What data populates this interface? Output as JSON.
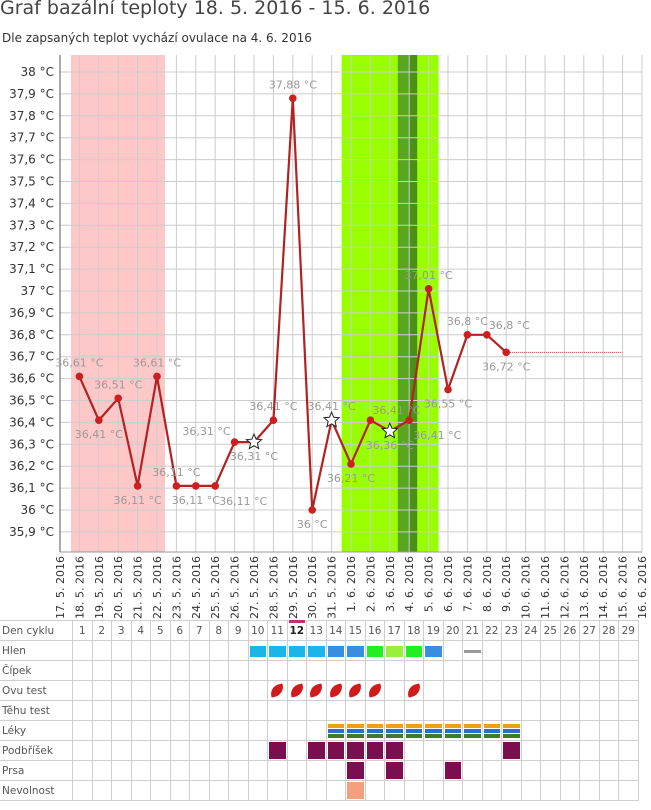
{
  "header": {
    "title": "Graf bazální teploty 18. 5. 2016 - 15. 6. 2016",
    "subtitle": "Dle zapsaných teplot vychází ovulace na 4. 6. 2016"
  },
  "colors": {
    "line": "#b22222",
    "point": "#cc1f1f",
    "period_band": "#ffc8c8",
    "fertile_band": "#99ff00",
    "ovulation_band": "#5aa61e",
    "forecast": "#cc2222",
    "label": "#999999"
  },
  "chart_data": {
    "type": "line",
    "y_ticks": [
      "38 °C",
      "37,9 °C",
      "37,8 °C",
      "37,7 °C",
      "37,6 °C",
      "37,5 °C",
      "37,4 °C",
      "37,3 °C",
      "37,2 °C",
      "37,1 °C",
      "37 °C",
      "36,9 °C",
      "36,8 °C",
      "36,7 °C",
      "36,6 °C",
      "36,5 °C",
      "36,4 °C",
      "36,3 °C",
      "36,2 °C",
      "36,1 °C",
      "36 °C",
      "35,9 °C"
    ],
    "ylim": [
      35.8,
      38.05
    ],
    "x_ticks": [
      "17. 5. 2016",
      "18. 5. 2016",
      "19. 5. 2016",
      "20. 5. 2016",
      "21. 5. 2016",
      "22. 5. 2016",
      "23. 5. 2016",
      "24. 5. 2016",
      "25. 5. 2016",
      "26. 5. 2016",
      "27. 5. 2016",
      "28. 5. 2016",
      "29. 5. 2016",
      "30. 5. 2016",
      "31. 5. 2016",
      "1. 6. 2016",
      "2. 6. 2016",
      "3. 6. 2016",
      "4. 6. 2016",
      "5. 6. 2016",
      "6. 6. 2016",
      "7. 6. 2016",
      "8. 6. 2016",
      "9. 6. 2016",
      "10. 6. 2016",
      "11. 6. 2016",
      "12. 6. 2016",
      "13. 6. 2016",
      "14. 6. 2016",
      "15. 6. 2016",
      "16. 6. 2016"
    ],
    "x_first_date": "17. 5. 2016",
    "period_band": [
      "17. 5. 2016",
      "22. 5. 2016"
    ],
    "fertile_band": [
      "31. 5. 2016",
      "5. 6. 2016"
    ],
    "ovulation_band": [
      "3. 6. 2016",
      "4. 6. 2016"
    ],
    "forecast": {
      "from": "9. 6. 2016",
      "to": "15. 6. 2016",
      "value": 36.72
    },
    "points": [
      {
        "date": "18. 5. 2016",
        "value": 36.61,
        "label": "36,61 °C",
        "label_pos": "above",
        "marker": "dot"
      },
      {
        "date": "19. 5. 2016",
        "value": 36.41,
        "label": "36,41 °C",
        "label_pos": "below",
        "marker": "dot"
      },
      {
        "date": "20. 5. 2016",
        "value": 36.51,
        "label": "36,51 °C",
        "label_pos": "above",
        "marker": "dot"
      },
      {
        "date": "21. 5. 2016",
        "value": 36.11,
        "label": "36,11 °C",
        "label_pos": "below",
        "marker": "dot"
      },
      {
        "date": "22. 5. 2016",
        "value": 36.61,
        "label": "36,61 °C",
        "label_pos": "above",
        "marker": "dot"
      },
      {
        "date": "23. 5. 2016",
        "value": 36.11,
        "label": "36,11 °C",
        "label_pos": "above",
        "marker": "dot"
      },
      {
        "date": "24. 5. 2016",
        "value": 36.11,
        "label": "36,11 °C",
        "label_pos": "below",
        "marker": "dot"
      },
      {
        "date": "25. 5. 2016",
        "value": 36.11,
        "label": "36,11 °C",
        "label_pos": "below-right",
        "marker": "dot"
      },
      {
        "date": "26. 5. 2016",
        "value": 36.31,
        "label": "36,31 °C",
        "label_pos": "above-left",
        "marker": "dot"
      },
      {
        "date": "27. 5. 2016",
        "value": 36.31,
        "label": "36,31 °C",
        "label_pos": "below",
        "marker": "star"
      },
      {
        "date": "28. 5. 2016",
        "value": 36.41,
        "label": "36,41 °C",
        "label_pos": "above",
        "marker": "dot"
      },
      {
        "date": "29. 5. 2016",
        "value": 37.88,
        "label": "37,88 °C",
        "label_pos": "above",
        "marker": "dot"
      },
      {
        "date": "30. 5. 2016",
        "value": 36.0,
        "label": "36 °C",
        "label_pos": "below",
        "marker": "dot"
      },
      {
        "date": "31. 5. 2016",
        "value": 36.41,
        "label": "36,41 °C",
        "label_pos": "above",
        "marker": "star"
      },
      {
        "date": "1. 6. 2016",
        "value": 36.21,
        "label": "36,21 °C",
        "label_pos": "below",
        "marker": "dot"
      },
      {
        "date": "2. 6. 2016",
        "value": 36.41,
        "label": "36,41 °C",
        "label_pos": "above-right",
        "marker": "dot"
      },
      {
        "date": "3. 6. 2016",
        "value": 36.36,
        "label": "36,36 °C",
        "label_pos": "below",
        "marker": "star"
      },
      {
        "date": "4. 6. 2016",
        "value": 36.41,
        "label": "36,41 °C",
        "label_pos": "below-right",
        "marker": "dot"
      },
      {
        "date": "5. 6. 2016",
        "value": 37.01,
        "label": "37,01 °C",
        "label_pos": "above",
        "marker": "dot"
      },
      {
        "date": "6. 6. 2016",
        "value": 36.55,
        "label": "36,55 °C",
        "label_pos": "below",
        "marker": "dot"
      },
      {
        "date": "7. 6. 2016",
        "value": 36.8,
        "label": "36,8 °C",
        "label_pos": "above",
        "marker": "dot"
      },
      {
        "date": "8. 6. 2016",
        "value": 36.8,
        "label": "36,8 °C",
        "label_pos": "above-right",
        "marker": "dot"
      },
      {
        "date": "9. 6. 2016",
        "value": 36.72,
        "label": "36,72 °C",
        "label_pos": "below",
        "marker": "dot"
      }
    ]
  },
  "cycle_table": {
    "label_header": "Den cyklu",
    "days": [
      "1",
      "2",
      "3",
      "4",
      "5",
      "6",
      "7",
      "8",
      "9",
      "10",
      "11",
      "12",
      "13",
      "14",
      "15",
      "16",
      "17",
      "18",
      "19",
      "20",
      "21",
      "22",
      "23",
      "24",
      "25",
      "26",
      "27",
      "28",
      "29"
    ],
    "today_day": 12,
    "rows": [
      {
        "label": "Hlen",
        "marks": [
          {
            "day": 10,
            "kind": "block",
            "color": "#1ab6e8"
          },
          {
            "day": 11,
            "kind": "block",
            "color": "#1ab6e8"
          },
          {
            "day": 12,
            "kind": "block",
            "color": "#1ab6e8"
          },
          {
            "day": 13,
            "kind": "block",
            "color": "#1ab6e8"
          },
          {
            "day": 14,
            "kind": "block",
            "color": "#3a8ee0"
          },
          {
            "day": 15,
            "kind": "block",
            "color": "#3a8ee0"
          },
          {
            "day": 16,
            "kind": "block",
            "color": "#22ee22"
          },
          {
            "day": 17,
            "kind": "block",
            "color": "#99f03c"
          },
          {
            "day": 18,
            "kind": "block",
            "color": "#22ee22"
          },
          {
            "day": 19,
            "kind": "block",
            "color": "#3a8ee0"
          },
          {
            "day": 21,
            "kind": "bar",
            "color": "#9a9a9a"
          }
        ]
      },
      {
        "label": "Čípek",
        "marks": []
      },
      {
        "label": "Ovu test",
        "marks": [
          {
            "day": 11,
            "kind": "leaf"
          },
          {
            "day": 12,
            "kind": "leaf"
          },
          {
            "day": 13,
            "kind": "leaf"
          },
          {
            "day": 14,
            "kind": "leaf"
          },
          {
            "day": 15,
            "kind": "leaf"
          },
          {
            "day": 16,
            "kind": "leaf"
          },
          {
            "day": 18,
            "kind": "leaf"
          }
        ]
      },
      {
        "label": "Těhu test",
        "marks": []
      },
      {
        "label": "Léky",
        "marks": [
          {
            "day": 14,
            "kind": "pill"
          },
          {
            "day": 15,
            "kind": "pill"
          },
          {
            "day": 16,
            "kind": "pill"
          },
          {
            "day": 17,
            "kind": "pill"
          },
          {
            "day": 18,
            "kind": "pill"
          },
          {
            "day": 19,
            "kind": "pill"
          },
          {
            "day": 20,
            "kind": "pill"
          },
          {
            "day": 21,
            "kind": "pill"
          },
          {
            "day": 22,
            "kind": "pill"
          },
          {
            "day": 23,
            "kind": "pill"
          }
        ]
      },
      {
        "label": "Podbříšek",
        "marks": [
          {
            "day": 11,
            "kind": "square",
            "color": "#7a0e4e"
          },
          {
            "day": 13,
            "kind": "square",
            "color": "#7a0e4e"
          },
          {
            "day": 14,
            "kind": "square",
            "color": "#7a0e4e"
          },
          {
            "day": 15,
            "kind": "square",
            "color": "#7a0e4e"
          },
          {
            "day": 16,
            "kind": "square",
            "color": "#7a0e4e"
          },
          {
            "day": 17,
            "kind": "square",
            "color": "#7a0e4e"
          },
          {
            "day": 23,
            "kind": "square",
            "color": "#7a0e4e"
          }
        ]
      },
      {
        "label": "Prsa",
        "marks": [
          {
            "day": 15,
            "kind": "square",
            "color": "#7a0e4e"
          },
          {
            "day": 17,
            "kind": "square",
            "color": "#7a0e4e"
          },
          {
            "day": 20,
            "kind": "square",
            "color": "#7a0e4e"
          }
        ]
      },
      {
        "label": "Nevolnost",
        "marks": [
          {
            "day": 15,
            "kind": "square",
            "color": "#f5a07c"
          }
        ]
      }
    ],
    "pill_colors": [
      "#e8a317",
      "#2e6ad1",
      "#3e7c2a"
    ]
  }
}
